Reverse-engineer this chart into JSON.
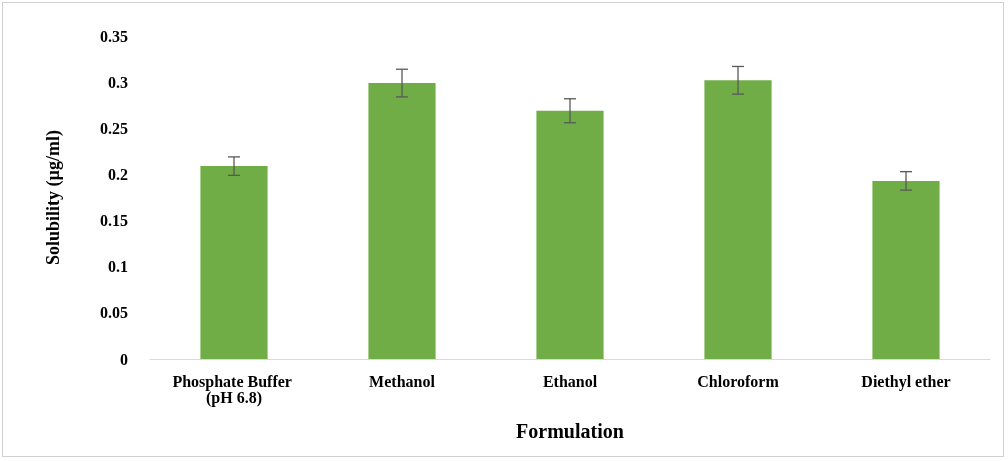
{
  "chart_data": {
    "type": "bar",
    "xlabel": "Formulation",
    "ylabel": "Solubility (µg/ml)",
    "categories": [
      "Phosphate Buffer (pH 6.8)",
      "Methanol",
      "Ethanol",
      "Chloroform",
      "Diethyl ether"
    ],
    "values": [
      0.209,
      0.299,
      0.269,
      0.302,
      0.193
    ],
    "errors": [
      0.01,
      0.015,
      0.013,
      0.015,
      0.01
    ],
    "color": "#70ad47",
    "ylim": [
      0,
      0.35
    ],
    "yticks": [
      0,
      0.05,
      0.1,
      0.15,
      0.2,
      0.25,
      0.3,
      0.35
    ],
    "grid": false
  }
}
